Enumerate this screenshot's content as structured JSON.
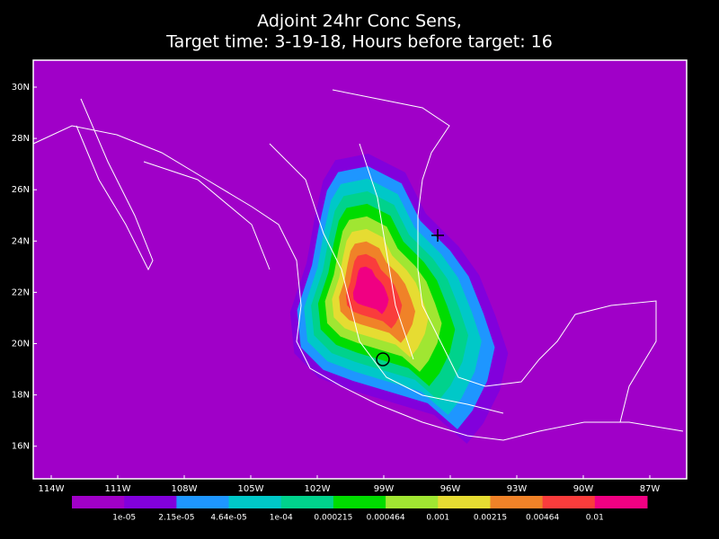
{
  "title": [
    "Adjoint 24hr Conc Sens,",
    "Target time: 3-19-18, Hours before target: 16"
  ],
  "lat_labels": [
    "30N",
    "28N",
    "26N",
    "24N",
    "22N",
    "20N",
    "18N",
    "16N"
  ],
  "lon_labels": [
    "114W",
    "111W",
    "108W",
    "105W",
    "102W",
    "99W",
    "96W",
    "93W",
    "90W",
    "87W"
  ],
  "colorbar": {
    "colors": [
      "#a000c8",
      "#8200dc",
      "#1e96ff",
      "#00c8c8",
      "#00d28c",
      "#00dc00",
      "#a0e632",
      "#e6dc32",
      "#f08228",
      "#fa3c3c",
      "#f00082"
    ],
    "labels": [
      "1e-05",
      "2.15e-05",
      "4.64e-05",
      "1e-04",
      "0.000215",
      "0.000464",
      "0.001",
      "0.00215",
      "0.00464",
      "0.01"
    ]
  }
}
